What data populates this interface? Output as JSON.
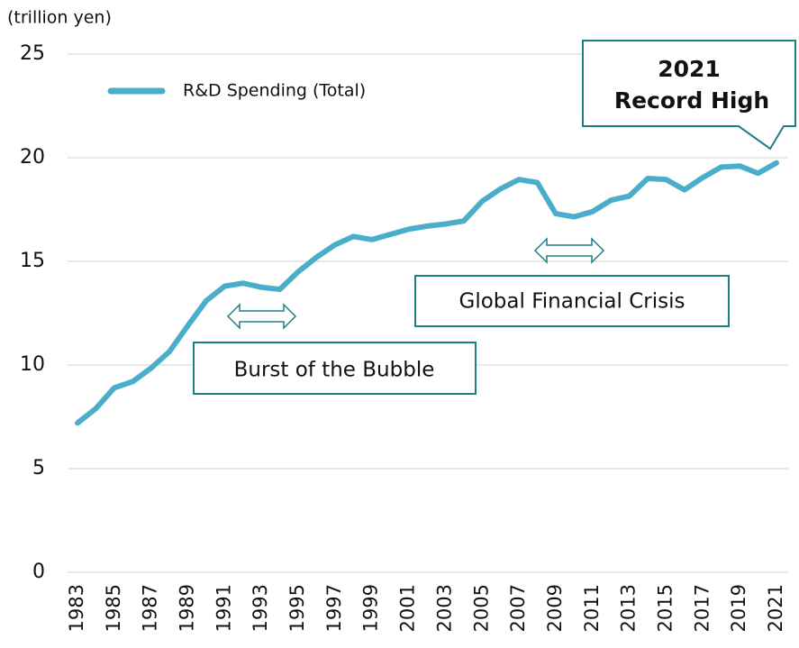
{
  "chart_data": {
    "type": "line",
    "y_axis_label": "(trillion yen)",
    "x": [
      1983,
      1984,
      1985,
      1986,
      1987,
      1988,
      1989,
      1990,
      1991,
      1992,
      1993,
      1994,
      1995,
      1996,
      1997,
      1998,
      1999,
      2000,
      2001,
      2002,
      2003,
      2004,
      2005,
      2006,
      2007,
      2008,
      2009,
      2010,
      2011,
      2012,
      2013,
      2014,
      2015,
      2016,
      2017,
      2018,
      2019,
      2020,
      2021
    ],
    "xlim": [
      1983,
      2021
    ],
    "xticks": [
      1983,
      1985,
      1987,
      1989,
      1991,
      1993,
      1995,
      1997,
      1999,
      2001,
      2003,
      2005,
      2007,
      2009,
      2011,
      2013,
      2015,
      2017,
      2019,
      2021
    ],
    "series": [
      {
        "name": "R&D Spending (Total)",
        "color": "#4aaecb",
        "values": [
          7.2,
          7.9,
          8.9,
          9.2,
          9.85,
          10.65,
          11.9,
          13.1,
          13.8,
          13.95,
          13.75,
          13.65,
          14.5,
          15.2,
          15.8,
          16.2,
          16.05,
          16.3,
          16.55,
          16.7,
          16.8,
          16.95,
          17.9,
          18.5,
          18.95,
          18.8,
          17.3,
          17.15,
          17.4,
          17.95,
          18.15,
          19.0,
          18.95,
          18.45,
          19.05,
          19.55,
          19.6,
          19.25,
          19.75
        ]
      }
    ],
    "ylim": [
      0,
      25
    ],
    "yticks": [
      0,
      5,
      10,
      15,
      20,
      25
    ],
    "grid": true,
    "callout_lines": [
      "2021",
      "Record High"
    ],
    "annotations": [
      "Burst of the Bubble",
      "Global Financial Crisis"
    ]
  }
}
